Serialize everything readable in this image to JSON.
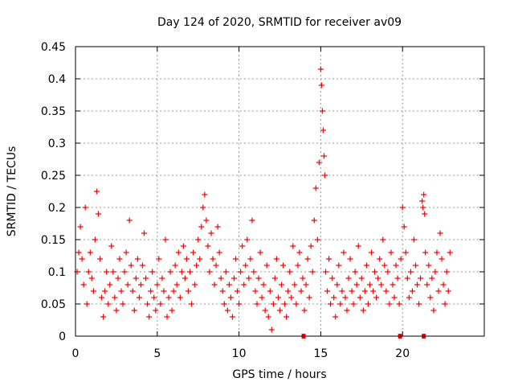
{
  "chart_data": {
    "type": "scatter",
    "title": "Day 124 of 2020, SRMTID for receiver av09",
    "xlabel": "GPS time / hours",
    "ylabel": "SRMTID / TECUs",
    "xlim": [
      0,
      25
    ],
    "ylim": [
      0,
      0.45
    ],
    "x_ticks": [
      0,
      5,
      10,
      15,
      20
    ],
    "x_tick_labels": [
      "0",
      "5",
      "10",
      "15",
      "20"
    ],
    "y_ticks": [
      0,
      0.05,
      0.1,
      0.15,
      0.2,
      0.25,
      0.3,
      0.35,
      0.4,
      0.45
    ],
    "y_tick_labels": [
      "0",
      "0.05",
      "0.1",
      "0.15",
      "0.2",
      "0.25",
      "0.3",
      "0.35",
      "0.4",
      "0.45"
    ],
    "grid": true,
    "marker": "plus",
    "color": "#ff0000",
    "series": [
      {
        "name": "SRMTID",
        "points": [
          [
            0.1,
            0.1
          ],
          [
            0.2,
            0.13
          ],
          [
            0.3,
            0.17
          ],
          [
            0.4,
            0.12
          ],
          [
            0.5,
            0.08
          ],
          [
            0.6,
            0.2
          ],
          [
            0.7,
            0.05
          ],
          [
            0.8,
            0.1
          ],
          [
            0.9,
            0.13
          ],
          [
            1.0,
            0.09
          ],
          [
            1.1,
            0.07
          ],
          [
            1.2,
            0.15
          ],
          [
            1.3,
            0.225
          ],
          [
            1.4,
            0.19
          ],
          [
            1.5,
            0.12
          ],
          [
            1.6,
            0.06
          ],
          [
            1.7,
            0.03
          ],
          [
            1.8,
            0.07
          ],
          [
            1.9,
            0.1
          ],
          [
            2.0,
            0.05
          ],
          [
            2.1,
            0.08
          ],
          [
            2.2,
            0.14
          ],
          [
            2.3,
            0.1
          ],
          [
            2.4,
            0.06
          ],
          [
            2.5,
            0.04
          ],
          [
            2.6,
            0.09
          ],
          [
            2.7,
            0.12
          ],
          [
            2.8,
            0.07
          ],
          [
            2.9,
            0.05
          ],
          [
            3.0,
            0.1
          ],
          [
            3.1,
            0.13
          ],
          [
            3.2,
            0.08
          ],
          [
            3.3,
            0.18
          ],
          [
            3.4,
            0.11
          ],
          [
            3.5,
            0.07
          ],
          [
            3.6,
            0.04
          ],
          [
            3.7,
            0.09
          ],
          [
            3.8,
            0.12
          ],
          [
            3.9,
            0.06
          ],
          [
            4.0,
            0.08
          ],
          [
            4.1,
            0.11
          ],
          [
            4.2,
            0.16
          ],
          [
            4.3,
            0.09
          ],
          [
            4.4,
            0.05
          ],
          [
            4.5,
            0.03
          ],
          [
            4.6,
            0.07
          ],
          [
            4.7,
            0.1
          ],
          [
            4.8,
            0.06
          ],
          [
            4.9,
            0.04
          ],
          [
            5.0,
            0.08
          ],
          [
            5.1,
            0.12
          ],
          [
            5.2,
            0.05
          ],
          [
            5.3,
            0.09
          ],
          [
            5.4,
            0.07
          ],
          [
            5.5,
            0.15
          ],
          [
            5.6,
            0.03
          ],
          [
            5.7,
            0.06
          ],
          [
            5.8,
            0.1
          ],
          [
            5.9,
            0.04
          ],
          [
            6.0,
            0.07
          ],
          [
            6.1,
            0.11
          ],
          [
            6.2,
            0.08
          ],
          [
            6.3,
            0.13
          ],
          [
            6.4,
            0.06
          ],
          [
            6.5,
            0.1
          ],
          [
            6.6,
            0.14
          ],
          [
            6.7,
            0.09
          ],
          [
            6.8,
            0.12
          ],
          [
            6.9,
            0.07
          ],
          [
            7.0,
            0.1
          ],
          [
            7.1,
            0.05
          ],
          [
            7.2,
            0.13
          ],
          [
            7.3,
            0.08
          ],
          [
            7.4,
            0.11
          ],
          [
            7.5,
            0.15
          ],
          [
            7.6,
            0.12
          ],
          [
            7.7,
            0.17
          ],
          [
            7.8,
            0.2
          ],
          [
            7.9,
            0.22
          ],
          [
            8.0,
            0.18
          ],
          [
            8.1,
            0.14
          ],
          [
            8.2,
            0.1
          ],
          [
            8.3,
            0.16
          ],
          [
            8.4,
            0.12
          ],
          [
            8.5,
            0.08
          ],
          [
            8.6,
            0.11
          ],
          [
            8.7,
            0.17
          ],
          [
            8.8,
            0.13
          ],
          [
            8.9,
            0.09
          ],
          [
            9.0,
            0.07
          ],
          [
            9.1,
            0.05
          ],
          [
            9.2,
            0.1
          ],
          [
            9.3,
            0.04
          ],
          [
            9.4,
            0.08
          ],
          [
            9.5,
            0.06
          ],
          [
            9.6,
            0.03
          ],
          [
            9.7,
            0.09
          ],
          [
            9.8,
            0.12
          ],
          [
            9.9,
            0.07
          ],
          [
            10.0,
            0.05
          ],
          [
            10.1,
            0.1
          ],
          [
            10.2,
            0.14
          ],
          [
            10.3,
            0.08
          ],
          [
            10.4,
            0.11
          ],
          [
            10.5,
            0.15
          ],
          [
            10.6,
            0.09
          ],
          [
            10.7,
            0.12
          ],
          [
            10.8,
            0.18
          ],
          [
            10.9,
            0.1
          ],
          [
            11.0,
            0.07
          ],
          [
            11.1,
            0.05
          ],
          [
            11.2,
            0.09
          ],
          [
            11.3,
            0.13
          ],
          [
            11.4,
            0.06
          ],
          [
            11.5,
            0.08
          ],
          [
            11.6,
            0.04
          ],
          [
            11.7,
            0.11
          ],
          [
            11.8,
            0.03
          ],
          [
            11.9,
            0.07
          ],
          [
            12.0,
            0.01
          ],
          [
            12.1,
            0.05
          ],
          [
            12.2,
            0.09
          ],
          [
            12.3,
            0.12
          ],
          [
            12.4,
            0.06
          ],
          [
            12.5,
            0.04
          ],
          [
            12.6,
            0.08
          ],
          [
            12.7,
            0.11
          ],
          [
            12.8,
            0.05
          ],
          [
            12.9,
            0.03
          ],
          [
            13.0,
            0.07
          ],
          [
            13.1,
            0.1
          ],
          [
            13.2,
            0.06
          ],
          [
            13.3,
            0.14
          ],
          [
            13.4,
            0.08
          ],
          [
            13.5,
            0.05
          ],
          [
            13.6,
            0.11
          ],
          [
            13.7,
            0.13
          ],
          [
            13.8,
            0.07
          ],
          [
            13.9,
            0.09
          ],
          [
            14.0,
            0.04
          ],
          [
            14.1,
            0.08
          ],
          [
            14.2,
            0.12
          ],
          [
            14.3,
            0.06
          ],
          [
            14.4,
            0.14
          ],
          [
            14.5,
            0.1
          ],
          [
            14.6,
            0.18
          ],
          [
            14.7,
            0.23
          ],
          [
            14.8,
            0.15
          ],
          [
            14.9,
            0.27
          ],
          [
            15.0,
            0.415
          ],
          [
            15.05,
            0.39
          ],
          [
            15.1,
            0.35
          ],
          [
            15.15,
            0.32
          ],
          [
            15.2,
            0.28
          ],
          [
            15.25,
            0.25
          ],
          [
            15.3,
            0.1
          ],
          [
            15.4,
            0.07
          ],
          [
            15.5,
            0.12
          ],
          [
            15.6,
            0.05
          ],
          [
            15.7,
            0.09
          ],
          [
            15.8,
            0.06
          ],
          [
            15.9,
            0.03
          ],
          [
            16.0,
            0.08
          ],
          [
            16.1,
            0.11
          ],
          [
            16.2,
            0.05
          ],
          [
            16.3,
            0.07
          ],
          [
            16.4,
            0.13
          ],
          [
            16.5,
            0.06
          ],
          [
            16.6,
            0.04
          ],
          [
            16.7,
            0.09
          ],
          [
            16.8,
            0.12
          ],
          [
            16.9,
            0.07
          ],
          [
            17.0,
            0.05
          ],
          [
            17.1,
            0.1
          ],
          [
            17.2,
            0.08
          ],
          [
            17.3,
            0.14
          ],
          [
            17.4,
            0.06
          ],
          [
            17.5,
            0.09
          ],
          [
            17.6,
            0.04
          ],
          [
            17.7,
            0.07
          ],
          [
            17.8,
            0.11
          ],
          [
            17.9,
            0.05
          ],
          [
            18.0,
            0.08
          ],
          [
            18.1,
            0.13
          ],
          [
            18.2,
            0.07
          ],
          [
            18.3,
            0.1
          ],
          [
            18.4,
            0.06
          ],
          [
            18.5,
            0.09
          ],
          [
            18.6,
            0.12
          ],
          [
            18.7,
            0.08
          ],
          [
            18.8,
            0.15
          ],
          [
            18.9,
            0.11
          ],
          [
            19.0,
            0.07
          ],
          [
            19.1,
            0.1
          ],
          [
            19.2,
            0.05
          ],
          [
            19.3,
            0.13
          ],
          [
            19.4,
            0.08
          ],
          [
            19.5,
            0.06
          ],
          [
            19.6,
            0.11
          ],
          [
            19.7,
            0.09
          ],
          [
            19.8,
            0.05
          ],
          [
            19.9,
            0.12
          ],
          [
            20.0,
            0.2
          ],
          [
            20.1,
            0.17
          ],
          [
            20.2,
            0.13
          ],
          [
            20.3,
            0.09
          ],
          [
            20.4,
            0.06
          ],
          [
            20.5,
            0.1
          ],
          [
            20.6,
            0.07
          ],
          [
            20.7,
            0.15
          ],
          [
            20.8,
            0.11
          ],
          [
            20.9,
            0.08
          ],
          [
            21.0,
            0.05
          ],
          [
            21.1,
            0.09
          ],
          [
            21.2,
            0.21
          ],
          [
            21.25,
            0.2
          ],
          [
            21.3,
            0.22
          ],
          [
            21.35,
            0.19
          ],
          [
            21.4,
            0.13
          ],
          [
            21.5,
            0.08
          ],
          [
            21.6,
            0.11
          ],
          [
            21.7,
            0.06
          ],
          [
            21.8,
            0.09
          ],
          [
            21.9,
            0.04
          ],
          [
            22.0,
            0.1
          ],
          [
            22.1,
            0.13
          ],
          [
            22.2,
            0.07
          ],
          [
            22.3,
            0.16
          ],
          [
            22.4,
            0.12
          ],
          [
            22.5,
            0.08
          ],
          [
            22.6,
            0.05
          ],
          [
            22.7,
            0.1
          ],
          [
            22.8,
            0.07
          ],
          [
            22.9,
            0.13
          ]
        ]
      }
    ],
    "baseline_markers": [
      {
        "x": 13.95,
        "y": 0
      },
      {
        "x": 19.85,
        "y": 0
      },
      {
        "x": 21.3,
        "y": 0
      }
    ]
  }
}
